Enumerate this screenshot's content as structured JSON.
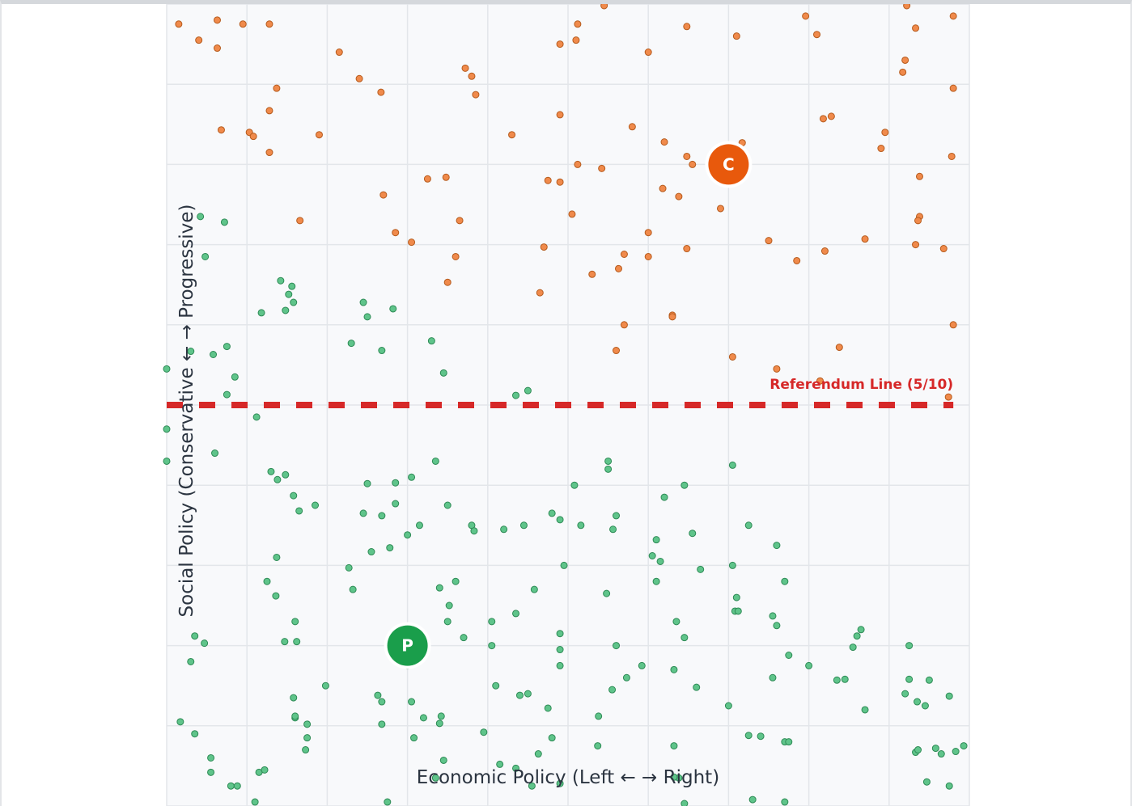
{
  "chart_data": {
    "type": "scatter",
    "xlabel": "Economic Policy (Left ← → Right)",
    "ylabel": "Social Policy (Conservative ← → Progressive)",
    "grid": true,
    "reference_line": {
      "label": "Referendum Line (5/10)",
      "y": 5,
      "color": "#d62828"
    },
    "candidates": [
      {
        "label": "C",
        "x": 7,
        "y": 8,
        "color": "#e8590c"
      },
      {
        "label": "P",
        "x": 3,
        "y": 2,
        "color": "#1a9e4b"
      }
    ],
    "series_colors": {
      "orange": "#f08a4b",
      "green": "#5fc48a"
    },
    "series": [
      {
        "color_key": "orange",
        "points": [
          [
            0.15,
            9.75
          ],
          [
            0.4,
            9.55
          ],
          [
            0.63,
            9.8
          ],
          [
            0.63,
            9.45
          ],
          [
            0.95,
            9.75
          ],
          [
            1.28,
            9.75
          ],
          [
            2.15,
            9.4
          ],
          [
            2.4,
            9.07
          ],
          [
            2.67,
            8.9
          ],
          [
            3.72,
            9.2
          ],
          [
            3.8,
            9.1
          ],
          [
            3.85,
            8.87
          ],
          [
            4.9,
            9.5
          ],
          [
            5.12,
            9.75
          ],
          [
            5.1,
            9.55
          ],
          [
            5.45,
            9.98
          ],
          [
            6.0,
            9.4
          ],
          [
            6.48,
            9.72
          ],
          [
            7.1,
            9.6
          ],
          [
            7.96,
            9.85
          ],
          [
            8.1,
            9.62
          ],
          [
            9.2,
            9.3
          ],
          [
            9.17,
            9.15
          ],
          [
            9.22,
            9.98
          ],
          [
            9.33,
            9.7
          ],
          [
            9.8,
            9.85
          ],
          [
            9.8,
            8.95
          ],
          [
            0.68,
            8.43
          ],
          [
            1.03,
            8.4
          ],
          [
            1.08,
            8.35
          ],
          [
            1.28,
            8.15
          ],
          [
            1.28,
            8.67
          ],
          [
            1.37,
            8.95
          ],
          [
            1.9,
            8.37
          ],
          [
            4.3,
            8.37
          ],
          [
            4.9,
            8.62
          ],
          [
            5.8,
            8.47
          ],
          [
            6.2,
            8.28
          ],
          [
            6.48,
            8.1
          ],
          [
            5.12,
            8.0
          ],
          [
            5.42,
            7.95
          ],
          [
            6.55,
            8.0
          ],
          [
            6.9,
            7.45
          ],
          [
            7.17,
            8.27
          ],
          [
            8.18,
            8.57
          ],
          [
            8.28,
            8.6
          ],
          [
            8.95,
            8.4
          ],
          [
            8.9,
            8.2
          ],
          [
            9.38,
            7.85
          ],
          [
            9.78,
            8.1
          ],
          [
            6.38,
            7.6
          ],
          [
            6.18,
            7.7
          ],
          [
            6.0,
            7.15
          ],
          [
            6.48,
            6.95
          ],
          [
            5.05,
            7.38
          ],
          [
            4.75,
            7.8
          ],
          [
            4.9,
            7.78
          ],
          [
            3.25,
            7.82
          ],
          [
            3.48,
            7.84
          ],
          [
            2.7,
            7.62
          ],
          [
            2.85,
            7.15
          ],
          [
            3.05,
            7.03
          ],
          [
            3.65,
            7.3
          ],
          [
            3.6,
            6.85
          ],
          [
            3.5,
            6.53
          ],
          [
            1.66,
            7.3
          ],
          [
            4.7,
            6.97
          ],
          [
            4.65,
            6.4
          ],
          [
            5.3,
            6.63
          ],
          [
            7.5,
            7.05
          ],
          [
            7.85,
            6.8
          ],
          [
            8.2,
            6.92
          ],
          [
            8.7,
            7.07
          ],
          [
            9.33,
            7.0
          ],
          [
            9.38,
            7.35
          ],
          [
            9.68,
            6.95
          ],
          [
            9.36,
            7.3
          ],
          [
            5.7,
            6.88
          ],
          [
            5.63,
            6.7
          ],
          [
            6.0,
            6.85
          ],
          [
            6.3,
            6.12
          ],
          [
            5.7,
            6.0
          ],
          [
            6.3,
            6.1
          ],
          [
            5.6,
            5.68
          ],
          [
            7.05,
            5.6
          ],
          [
            8.38,
            5.72
          ],
          [
            8.14,
            5.3
          ],
          [
            7.6,
            5.45
          ],
          [
            9.74,
            5.1
          ],
          [
            9.8,
            6.0
          ]
        ]
      },
      {
        "color_key": "green",
        "points": [
          [
            0.42,
            7.35
          ],
          [
            0.72,
            7.28
          ],
          [
            0.48,
            6.85
          ],
          [
            1.42,
            6.55
          ],
          [
            1.56,
            6.48
          ],
          [
            1.52,
            6.38
          ],
          [
            1.58,
            6.28
          ],
          [
            1.18,
            6.15
          ],
          [
            1.48,
            6.18
          ],
          [
            2.45,
            6.28
          ],
          [
            2.5,
            6.1
          ],
          [
            2.82,
            6.2
          ],
          [
            0.3,
            5.67
          ],
          [
            0.58,
            5.63
          ],
          [
            0.75,
            5.73
          ],
          [
            0.85,
            5.35
          ],
          [
            0.75,
            5.13
          ],
          [
            0.0,
            5.45
          ],
          [
            2.3,
            5.77
          ],
          [
            2.68,
            5.68
          ],
          [
            3.3,
            5.8
          ],
          [
            3.45,
            5.4
          ],
          [
            4.35,
            5.12
          ],
          [
            4.5,
            5.18
          ],
          [
            0.0,
            4.7
          ],
          [
            0.0,
            4.3
          ],
          [
            0.6,
            4.4
          ],
          [
            1.12,
            4.85
          ],
          [
            1.3,
            4.17
          ],
          [
            1.38,
            4.07
          ],
          [
            1.48,
            4.13
          ],
          [
            1.58,
            3.87
          ],
          [
            1.65,
            3.68
          ],
          [
            1.85,
            3.75
          ],
          [
            2.5,
            4.02
          ],
          [
            2.85,
            4.03
          ],
          [
            3.05,
            4.1
          ],
          [
            3.35,
            4.3
          ],
          [
            2.45,
            3.65
          ],
          [
            2.68,
            3.62
          ],
          [
            2.85,
            3.77
          ],
          [
            3.15,
            3.5
          ],
          [
            3.0,
            3.38
          ],
          [
            2.55,
            3.17
          ],
          [
            2.78,
            3.22
          ],
          [
            3.5,
            3.75
          ],
          [
            3.8,
            3.5
          ],
          [
            3.83,
            3.43
          ],
          [
            4.2,
            3.45
          ],
          [
            4.45,
            3.5
          ],
          [
            4.8,
            3.65
          ],
          [
            4.9,
            3.57
          ],
          [
            5.08,
            4.0
          ],
          [
            5.5,
            4.2
          ],
          [
            5.5,
            4.3
          ],
          [
            5.56,
            3.45
          ],
          [
            5.6,
            3.62
          ],
          [
            5.16,
            3.5
          ],
          [
            6.05,
            3.12
          ],
          [
            6.1,
            3.32
          ],
          [
            6.15,
            3.05
          ],
          [
            6.1,
            2.8
          ],
          [
            1.37,
            3.1
          ],
          [
            1.25,
            2.8
          ],
          [
            1.36,
            2.62
          ],
          [
            2.27,
            2.97
          ],
          [
            2.32,
            2.7
          ],
          [
            3.4,
            2.72
          ],
          [
            3.6,
            2.8
          ],
          [
            3.52,
            2.5
          ],
          [
            3.5,
            2.3
          ],
          [
            3.7,
            2.1
          ],
          [
            4.05,
            2.3
          ],
          [
            4.35,
            2.4
          ],
          [
            4.58,
            2.7
          ],
          [
            4.95,
            3.0
          ],
          [
            5.48,
            2.65
          ],
          [
            5.6,
            2.0
          ],
          [
            0.35,
            2.12
          ],
          [
            0.47,
            2.03
          ],
          [
            1.47,
            2.05
          ],
          [
            1.62,
            2.05
          ],
          [
            1.6,
            2.3
          ],
          [
            0.3,
            1.8
          ],
          [
            0.17,
            1.05
          ],
          [
            0.55,
            0.6
          ],
          [
            0.55,
            0.42
          ],
          [
            0.8,
            0.25
          ],
          [
            0.88,
            0.25
          ],
          [
            1.15,
            0.42
          ],
          [
            1.1,
            0.05
          ],
          [
            1.58,
            1.35
          ],
          [
            1.75,
            1.02
          ],
          [
            1.6,
            1.1
          ],
          [
            1.6,
            1.12
          ],
          [
            1.75,
            0.85
          ],
          [
            1.73,
            0.7
          ],
          [
            1.98,
            1.5
          ],
          [
            2.63,
            1.38
          ],
          [
            2.68,
            1.3
          ],
          [
            2.68,
            1.02
          ],
          [
            3.08,
            0.85
          ],
          [
            3.2,
            1.1
          ],
          [
            3.42,
            1.12
          ],
          [
            3.45,
            0.57
          ],
          [
            3.4,
            1.03
          ],
          [
            3.95,
            0.92
          ],
          [
            4.05,
            2.0
          ],
          [
            4.1,
            1.5
          ],
          [
            4.4,
            1.38
          ],
          [
            4.5,
            1.4
          ],
          [
            4.75,
            1.22
          ],
          [
            4.63,
            0.65
          ],
          [
            4.8,
            0.85
          ],
          [
            4.9,
            2.15
          ],
          [
            4.9,
            1.95
          ],
          [
            4.9,
            1.75
          ],
          [
            5.38,
            1.12
          ],
          [
            5.55,
            1.45
          ],
          [
            5.73,
            1.6
          ],
          [
            5.92,
            1.75
          ],
          [
            6.32,
            1.7
          ],
          [
            6.32,
            0.75
          ],
          [
            6.6,
            1.48
          ],
          [
            6.35,
            2.3
          ],
          [
            6.45,
            2.1
          ],
          [
            6.65,
            2.95
          ],
          [
            7.1,
            2.6
          ],
          [
            7.05,
            3.0
          ],
          [
            7.25,
            3.5
          ],
          [
            7.05,
            4.25
          ],
          [
            6.45,
            4.0
          ],
          [
            6.2,
            3.85
          ],
          [
            6.55,
            3.4
          ],
          [
            7.6,
            3.25
          ],
          [
            7.7,
            2.8
          ],
          [
            7.55,
            2.37
          ],
          [
            7.08,
            2.43
          ],
          [
            7.12,
            2.43
          ],
          [
            7.6,
            2.25
          ],
          [
            7.55,
            1.6
          ],
          [
            7.75,
            1.88
          ],
          [
            7.0,
            1.25
          ],
          [
            7.25,
            0.88
          ],
          [
            7.4,
            0.87
          ],
          [
            7.7,
            0.8
          ],
          [
            7.75,
            0.8
          ],
          [
            7.7,
            0.05
          ],
          [
            7.3,
            0.08
          ],
          [
            8.0,
            1.75
          ],
          [
            8.55,
            1.98
          ],
          [
            8.65,
            2.2
          ],
          [
            9.2,
            1.4
          ],
          [
            9.25,
            1.58
          ],
          [
            9.35,
            1.3
          ],
          [
            9.45,
            1.25
          ],
          [
            9.5,
            1.57
          ],
          [
            9.75,
            1.37
          ],
          [
            9.83,
            0.68
          ],
          [
            9.33,
            0.67
          ],
          [
            9.36,
            0.7
          ],
          [
            9.65,
            0.65
          ],
          [
            9.25,
            2.0
          ],
          [
            9.47,
            0.3
          ],
          [
            9.75,
            0.25
          ],
          [
            9.58,
            0.72
          ],
          [
            9.93,
            0.75
          ],
          [
            3.05,
            1.3
          ],
          [
            3.35,
            0.35
          ],
          [
            4.35,
            0.47
          ],
          [
            4.55,
            0.25
          ],
          [
            4.9,
            0.28
          ],
          [
            6.45,
            0.03
          ],
          [
            6.38,
            0.35
          ],
          [
            6.32,
            0.36
          ],
          [
            8.35,
            1.57
          ],
          [
            8.45,
            1.58
          ],
          [
            8.7,
            1.2
          ],
          [
            8.6,
            2.12
          ],
          [
            2.75,
            0.05
          ],
          [
            1.22,
            0.45
          ],
          [
            0.35,
            0.9
          ],
          [
            2.95,
            2.0
          ],
          [
            3.0,
            1.75
          ],
          [
            4.15,
            0.52
          ],
          [
            5.37,
            0.75
          ]
        ]
      }
    ]
  }
}
